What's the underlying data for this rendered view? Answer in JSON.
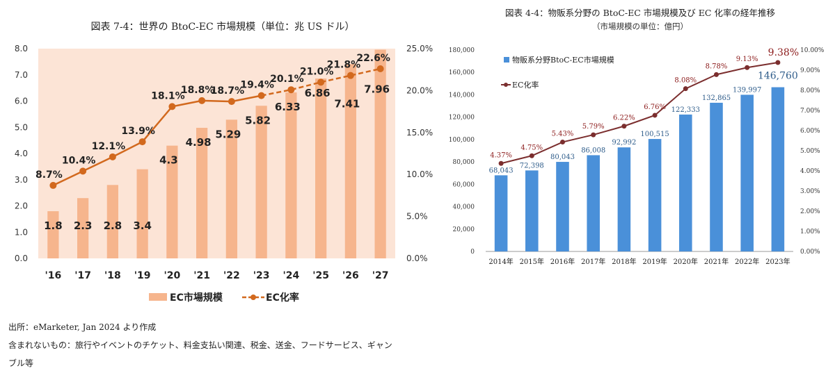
{
  "left": {
    "title": "図表 7-4：世界の BtoC-EC 市場規模（単位：兆 US ドル）",
    "notes": [
      "出所：eMarketer, Jan 2024 より作成",
      "含まれないもの：旅行やイベントのチケット、料金支払い関連、税金、送金、フードサービス、ギャン",
      "ブル等"
    ]
  },
  "right": {
    "title": "図表 4-4：物販系分野の BtoC-EC 市場規模及び EC 化率の経年推移",
    "subtitle": "（市場規模の単位：億円）"
  },
  "chart_data": [
    {
      "type": "bar",
      "title": "図表 7-4：世界の BtoC-EC 市場規模（単位：兆 US ドル）",
      "categories": [
        "'16",
        "'17",
        "'18",
        "'19",
        "'20",
        "'21",
        "'22",
        "'23",
        "'24",
        "'25",
        "'26",
        "'27"
      ],
      "bar_labels": [
        "1.8",
        "2.3",
        "2.8",
        "3.4",
        "4.3",
        "4.98",
        "5.29",
        "5.82",
        "6.33",
        "6.86",
        "7.41",
        "7.96"
      ],
      "line_labels": [
        "8.7%",
        "10.4%",
        "12.1%",
        "13.9%",
        "18.1%",
        "18.8%",
        "18.7%",
        "19.4%",
        "20.1%",
        "21.0%",
        "21.8%",
        "22.6%"
      ],
      "series": [
        {
          "name": "EC市場規模",
          "type": "bar",
          "axis": "left",
          "values": [
            1.8,
            2.3,
            2.8,
            3.4,
            4.3,
            4.98,
            5.29,
            5.82,
            6.33,
            6.86,
            7.41,
            7.96
          ]
        },
        {
          "name": "EC化率",
          "type": "line",
          "axis": "right",
          "values": [
            8.7,
            10.4,
            12.1,
            13.9,
            18.1,
            18.8,
            18.7,
            19.4,
            20.1,
            21.0,
            21.8,
            22.6
          ],
          "dashed_from_index": 7
        }
      ],
      "ylim": [
        0,
        8
      ],
      "y_ticks": [
        "0.0",
        "1.0",
        "2.0",
        "3.0",
        "4.0",
        "5.0",
        "6.0",
        "7.0",
        "8.0"
      ],
      "y2lim": [
        0,
        25
      ],
      "y2_ticks": [
        "0.0%",
        "5.0%",
        "10.0%",
        "15.0%",
        "20.0%",
        "25.0%"
      ],
      "legend_position": "bottom",
      "colors": {
        "bar": "#f6b58d",
        "line": "#d2691e",
        "background": "#fce4d6"
      }
    },
    {
      "type": "bar",
      "title": "図表 4-4：物販系分野の BtoC-EC 市場規模及び EC 化率の経年推移",
      "subtitle": "（市場規模の単位：億円）",
      "categories": [
        "2014年",
        "2015年",
        "2016年",
        "2017年",
        "2018年",
        "2019年",
        "2020年",
        "2021年",
        "2022年",
        "2023年"
      ],
      "bar_labels": [
        "68,043",
        "72,398",
        "80,043",
        "86,008",
        "92,992",
        "100,515",
        "122,333",
        "132,865",
        "139,997",
        "146,760"
      ],
      "line_labels": [
        "4.37%",
        "4.75%",
        "5.43%",
        "5.79%",
        "6.22%",
        "6.76%",
        "8.08%",
        "8.78%",
        "9.13%",
        "9.38%"
      ],
      "series": [
        {
          "name": "物販系分野BtoC-EC市場規模",
          "type": "bar",
          "axis": "left",
          "values": [
            68043,
            72398,
            80043,
            86008,
            92992,
            100515,
            122333,
            132865,
            139997,
            146760
          ]
        },
        {
          "name": "EC化率",
          "type": "line",
          "axis": "right",
          "values": [
            4.37,
            4.75,
            5.43,
            5.79,
            6.22,
            6.76,
            8.08,
            8.78,
            9.13,
            9.38
          ]
        }
      ],
      "ylim": [
        0,
        180000
      ],
      "y_ticks": [
        "0",
        "20,000",
        "40,000",
        "60,000",
        "80,000",
        "100,000",
        "120,000",
        "140,000",
        "160,000",
        "180,000"
      ],
      "y2lim": [
        0,
        10
      ],
      "y2_ticks": [
        "0.00%",
        "1.00%",
        "2.00%",
        "3.00%",
        "4.00%",
        "5.00%",
        "6.00%",
        "7.00%",
        "8.00%",
        "9.00%",
        "10.00%"
      ],
      "legend_position": "top-left",
      "colors": {
        "bar": "#4a90d9",
        "line": "#7b2e2e",
        "bar_label": "#2e5c8a",
        "line_label": "#8b1a1a"
      }
    }
  ]
}
